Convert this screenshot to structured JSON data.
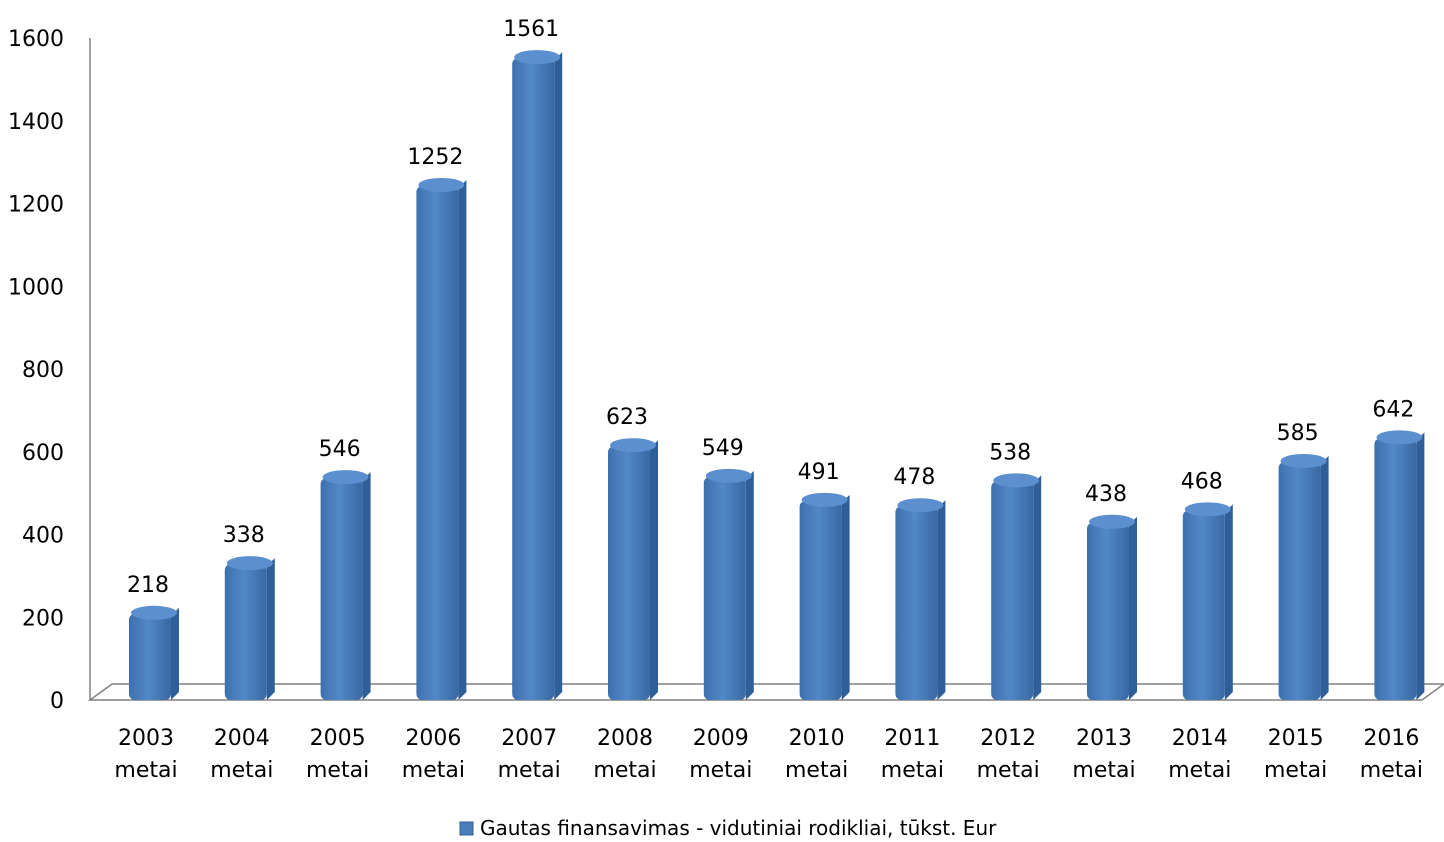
{
  "chart_data": {
    "type": "bar",
    "categories": [
      [
        "2003",
        "metai"
      ],
      [
        "2004",
        "metai"
      ],
      [
        "2005",
        "metai"
      ],
      [
        "2006",
        "metai"
      ],
      [
        "2007",
        "metai"
      ],
      [
        "2008",
        "metai"
      ],
      [
        "2009",
        "metai"
      ],
      [
        "2010",
        "metai"
      ],
      [
        "2011",
        "metai"
      ],
      [
        "2012",
        "metai"
      ],
      [
        "2013",
        "metai"
      ],
      [
        "2014",
        "metai"
      ],
      [
        "2015",
        "metai"
      ],
      [
        "2016",
        "metai"
      ]
    ],
    "series": [
      {
        "name": "Gautas finansavimas - vidutiniai rodikliai, tūkst. Eur",
        "values": [
          218,
          338,
          546,
          1252,
          1561,
          623,
          549,
          491,
          478,
          538,
          438,
          468,
          585,
          642
        ]
      }
    ],
    "ylim": [
      0,
      1600
    ],
    "yticks": [
      0,
      200,
      400,
      600,
      800,
      1000,
      1200,
      1400,
      1600
    ],
    "title": "",
    "xlabel": "",
    "ylabel": "",
    "legend_position": "bottom",
    "bar_color": "#4a7ebb",
    "bar_top_color": "#5b8fd0",
    "bar_side_color": "#2f5f99",
    "grid": false
  }
}
